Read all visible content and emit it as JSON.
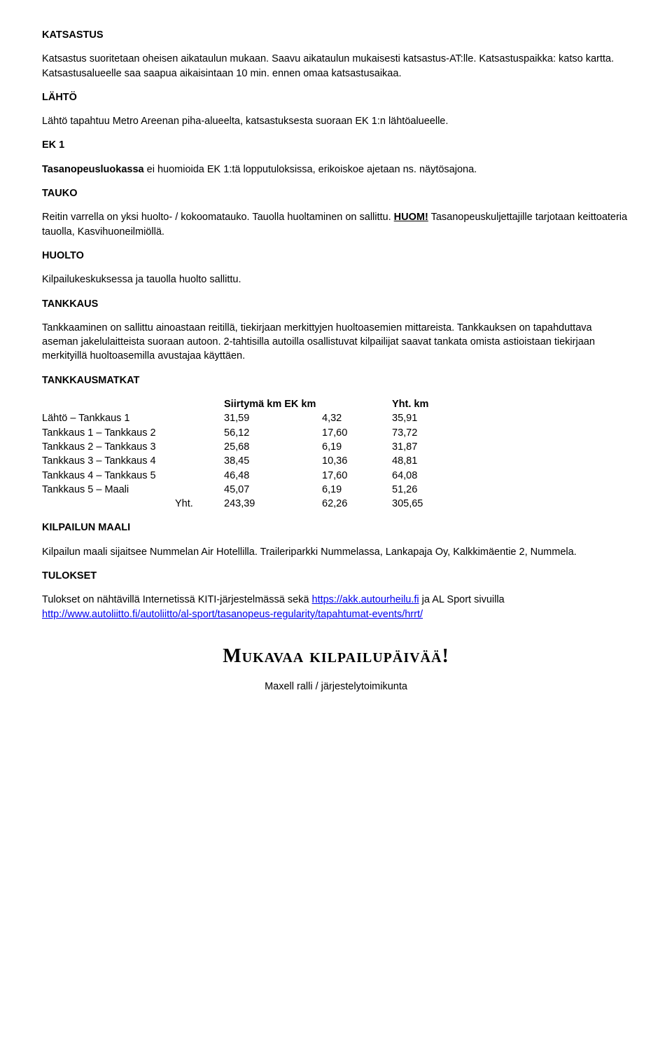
{
  "sections": {
    "katsastus": {
      "heading": "KATSASTUS",
      "text": "Katsastus suoritetaan oheisen aikataulun mukaan. Saavu aikataulun mukaisesti katsastus-AT:lle. Katsastuspaikka: katso kartta. Katsastusalueelle saa saapua aikaisintaan 10 min. ennen omaa katsastusaikaa."
    },
    "lahto": {
      "heading": "LÄHTÖ",
      "text": "Lähtö tapahtuu Metro Areenan piha-alueelta, katsastuksesta suoraan EK 1:n lähtöalueelle."
    },
    "ek1": {
      "heading": "EK 1",
      "bold_lead": "Tasanopeusluokassa",
      "text_rest": " ei huomioida EK 1:tä lopputuloksissa, erikoiskoe ajetaan ns. näytösajona."
    },
    "tauko": {
      "heading": "TAUKO",
      "text_before": "Reitin varrella on yksi huolto- / kokoomatauko. Tauolla huoltaminen on sallittu. ",
      "huom": "HUOM!",
      "text_after": " Tasanopeuskuljettajille tarjotaan keittoateria tauolla, Kasvihuoneilmiöllä."
    },
    "huolto": {
      "heading": "HUOLTO",
      "text": "Kilpailukeskuksessa ja tauolla huolto sallittu."
    },
    "tankkaus": {
      "heading": "TANKKAUS",
      "text": "Tankkaaminen on sallittu ainoastaan reitillä, tiekirjaan merkittyjen huoltoasemien mittareista. Tankkauksen on tapahduttava aseman jakelulaitteista suoraan autoon. 2-tahtisilla autoilla osallistuvat kilpailijat saavat tankata omista astioistaan tiekirjaan merkityillä huoltoasemilla avustajaa käyttäen."
    },
    "tankkausmatkat": {
      "heading": "TANKKAUSMATKAT",
      "header": {
        "siirtyma": "Siirtymä km EK km",
        "yht": "Yht. km"
      },
      "rows": [
        {
          "label": "Lähtö – Tankkaus 1",
          "siirtyma": "31,59",
          "ek": "4,32",
          "yht": "35,91"
        },
        {
          "label": "Tankkaus 1 – Tankkaus 2",
          "siirtyma": "56,12",
          "ek": "17,60",
          "yht": "73,72"
        },
        {
          "label": "Tankkaus 2 – Tankkaus 3",
          "siirtyma": "25,68",
          "ek": "6,19",
          "yht": "31,87"
        },
        {
          "label": "Tankkaus 3 – Tankkaus 4",
          "siirtyma": "38,45",
          "ek": "10,36",
          "yht": "48,81"
        },
        {
          "label": "Tankkaus 4 – Tankkaus 5",
          "siirtyma": "46,48",
          "ek": "17,60",
          "yht": "64,08"
        },
        {
          "label": "Tankkaus 5 – Maali",
          "siirtyma": "45,07",
          "ek": "6,19",
          "yht": "51,26"
        }
      ],
      "total": {
        "label": "Yht.",
        "siirtyma": "243,39",
        "ek": "62,26",
        "yht": "305,65"
      }
    },
    "kilpailun_maali": {
      "heading": "KILPAILUN MAALI",
      "text_before": "Kilpailun maali sijaitsee Nummelan Air Hotellilla. Traileriparkki Nummelassa, Lankapaja Oy, ",
      "text_small": "Kalkkimäentie 2, Nummela."
    },
    "tulokset": {
      "heading": "TULOKSET",
      "text_before": "Tulokset on nähtävillä Internetissä KITI-järjestelmässä sekä ",
      "link1": "https://akk.autourheilu.fi",
      "text_mid": " ja AL Sport sivuilla ",
      "link2": "http://www.autoliitto.fi/autoliitto/al-sport/tasanopeus-regularity/tapahtumat-events/hrrt/"
    },
    "footer": {
      "title": "Mukavaa kilpailupäivää!",
      "sub": "Maxell ralli / järjestelytoimikunta"
    }
  },
  "styles": {
    "body_fontsize": 14.5,
    "body_color": "#000000",
    "background_color": "#ffffff",
    "link_color": "#0000ee",
    "footer_title_fontsize": 28
  }
}
